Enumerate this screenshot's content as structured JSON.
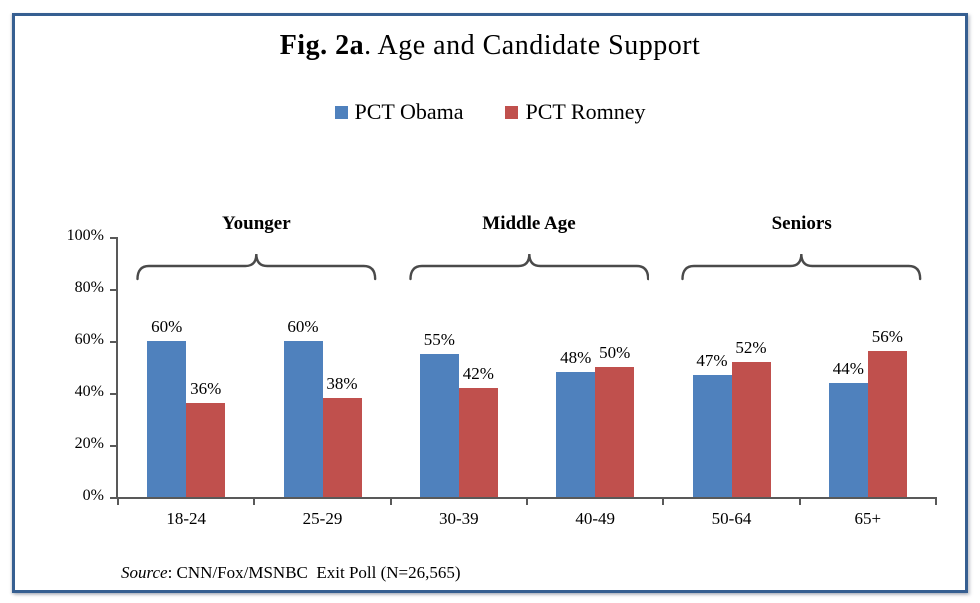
{
  "figure": {
    "title_prefix": "Fig. 2a",
    "title_rest": ". Age and Candidate Support",
    "source_label": "Source",
    "source_rest": ": CNN/Fox/MSNBC  Exit Poll (N=26,565)"
  },
  "colors": {
    "obama_blue": "#4F81BD",
    "romney_red": "#C0504D",
    "frame_border": "#365F91",
    "axis_gray": "#595959",
    "bracket_gray": "#4a4a4a",
    "text_black": "#000000"
  },
  "chart_data": {
    "type": "bar",
    "title": "Fig. 2a. Age and Candidate Support",
    "categories": [
      "18-24",
      "25-29",
      "30-39",
      "40-49",
      "50-64",
      "65+"
    ],
    "series": [
      {
        "name": "PCT Obama",
        "color": "#4F81BD",
        "values": [
          60,
          60,
          55,
          48,
          47,
          44
        ]
      },
      {
        "name": "PCT Romney",
        "color": "#C0504D",
        "values": [
          36,
          38,
          42,
          50,
          52,
          56
        ]
      }
    ],
    "value_labels": [
      [
        "60%",
        "60%",
        "55%",
        "48%",
        "47%",
        "44%"
      ],
      [
        "36%",
        "38%",
        "42%",
        "50%",
        "52%",
        "56%"
      ]
    ],
    "value_suffix": "%",
    "xlabel": "",
    "ylabel": "",
    "ylim": [
      0,
      100
    ],
    "yticks": [
      0,
      20,
      40,
      60,
      80,
      100
    ],
    "ytick_labels": [
      "0%",
      "20%",
      "40%",
      "60%",
      "80%",
      "100%"
    ],
    "grid": false,
    "legend_position": "top-center",
    "group_annotations": [
      {
        "label": "Younger",
        "from_category": "18-24",
        "to_category": "25-29"
      },
      {
        "label": "Middle Age",
        "from_category": "30-39",
        "to_category": "40-49"
      },
      {
        "label": "Seniors",
        "from_category": "50-64",
        "to_category": "65+"
      }
    ],
    "source": "Source: CNN/Fox/MSNBC  Exit Poll (N=26,565)"
  }
}
